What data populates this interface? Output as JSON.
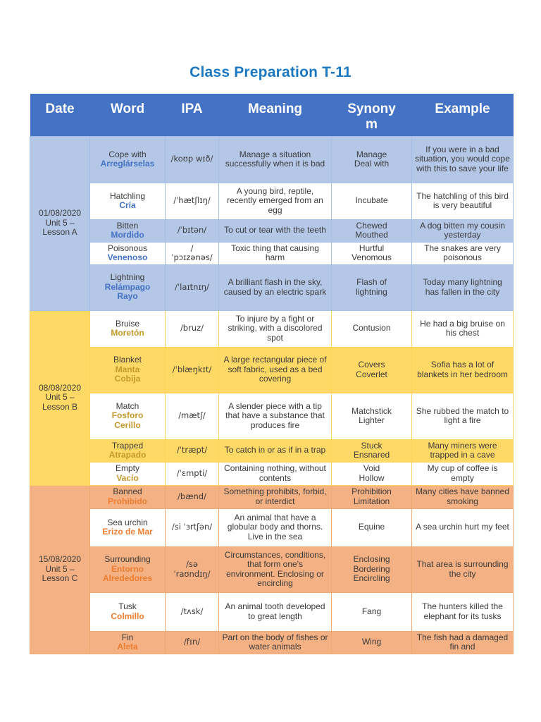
{
  "title": "Class Preparation T-11",
  "theme": {
    "title_color": "#1b78c2",
    "header_bg": "#4472c4",
    "header_text": "#ffffff",
    "body_text": "#3b3b3b",
    "page_bg": "#ffffff"
  },
  "table": {
    "headers": [
      "Date",
      "Word",
      "IPA",
      "Meaning",
      "Synonym",
      "Example"
    ],
    "groups": [
      {
        "date_lines": [
          "01/08/2020",
          "Unit 5 –",
          "Lesson A"
        ],
        "theme": {
          "shade": "#b4c7e7",
          "border": "#a5c0e6",
          "translation_color": "#4472c4"
        },
        "rows": [
          {
            "shaded": true,
            "word": "Cope with",
            "translation": [
              "Arreglárselas"
            ],
            "ipa": [
              "/koʊp wɪð/"
            ],
            "meaning": "Manage a situation successfully when it is bad",
            "synonym": [
              "Manage",
              "Deal with"
            ],
            "example": "If you were in a bad situation, you would cope with this to save your life"
          },
          {
            "shaded": false,
            "word": "Hatchling",
            "translation": [
              "Cría"
            ],
            "ipa": [
              "/ˈhætʃlɪŋ/"
            ],
            "meaning": "A young bird, reptile, recently emerged from an egg",
            "synonym": [
              "Incubate"
            ],
            "example": "The hatchling of this bird is very beautiful"
          },
          {
            "shaded": true,
            "word": "Bitten",
            "translation": [
              "Mordido"
            ],
            "ipa": [
              "/ˈbɪtən/"
            ],
            "meaning": "To cut or tear with the teeth",
            "synonym": [
              "Chewed",
              "Mouthed"
            ],
            "example": "A dog bitten my cousin yesterday"
          },
          {
            "shaded": false,
            "word": "Poisonous",
            "translation": [
              "Venenoso"
            ],
            "ipa": [
              "/",
              "ˈpɔɪzənəs/"
            ],
            "meaning": "Toxic thing that causing harm",
            "synonym": [
              "Hurtful",
              "Venomous"
            ],
            "example": "The snakes are very poisonous"
          },
          {
            "shaded": true,
            "word": "Lightning",
            "translation": [
              "Relámpago",
              "Rayo"
            ],
            "ipa": [
              "/ˈlaɪtnɪŋ/"
            ],
            "meaning": "A brilliant flash in the sky, caused by an electric spark",
            "synonym": [
              "Flash of",
              "lightning"
            ],
            "example": "Today many lightning has fallen in the city"
          }
        ]
      },
      {
        "date_lines": [
          "08/08/2020",
          "Unit 5 –",
          "Lesson B"
        ],
        "theme": {
          "shade": "#ffd966",
          "border": "#fcd45b",
          "translation_color": "#c3992a"
        },
        "rows": [
          {
            "shaded": false,
            "word": "Bruise",
            "translation": [
              "Moretón"
            ],
            "ipa": [
              "/bruz/"
            ],
            "meaning": "To injure by a fight or striking, with a discolored spot",
            "synonym": [
              "Contusion"
            ],
            "example": "He had a big bruise on his chest"
          },
          {
            "shaded": true,
            "word": "Blanket",
            "translation": [
              "Manta",
              "Cobija"
            ],
            "ipa": [
              "/ˈblæŋkɪt/"
            ],
            "meaning": "A large rectangular piece of soft fabric, used as a bed covering",
            "synonym": [
              "Covers",
              "Coverlet"
            ],
            "example": "Sofia has a lot of blankets in her bedroom"
          },
          {
            "shaded": false,
            "word": "Match",
            "translation": [
              "Fosforo",
              "Cerillo"
            ],
            "ipa": [
              "/mætʃ/"
            ],
            "meaning": "A slender piece with a tip that have a substance that produces fire",
            "synonym": [
              "Matchstick",
              "Lighter"
            ],
            "example": "She rubbed the match to light a fire"
          },
          {
            "shaded": true,
            "word": "Trapped",
            "translation": [
              "Atrapado"
            ],
            "ipa": [
              "/ˈtræpt/"
            ],
            "meaning": "To catch in or as if in a trap",
            "synonym": [
              "Stuck",
              "Ensnared"
            ],
            "example": "Many miners were trapped in a cave"
          },
          {
            "shaded": false,
            "word": "Empty",
            "translation": [
              "Vacío"
            ],
            "ipa": [
              "/ˈɛmpti/"
            ],
            "meaning": "Containing nothing, without contents",
            "synonym": [
              "Void",
              "Hollow"
            ],
            "example": "My cup of coffee is empty"
          }
        ]
      },
      {
        "date_lines": [
          "15/08/2020",
          "Unit 5 –",
          "Lesson C"
        ],
        "theme": {
          "shade": "#f4b183",
          "border": "#f0a872",
          "translation_color": "#ed7d31"
        },
        "rows": [
          {
            "shaded": true,
            "word": "Banned",
            "translation": [
              "Prohibido"
            ],
            "ipa": [
              "/bænd/"
            ],
            "meaning": "Something prohibits, forbid, or interdict",
            "synonym": [
              "Prohibition",
              "Limitation"
            ],
            "example": "Many cities have banned smoking"
          },
          {
            "shaded": false,
            "word": "Sea urchin",
            "translation": [
              "Erizo de Mar"
            ],
            "ipa": [
              "/si ˈɜrtʃən/"
            ],
            "meaning": "An animal that have a globular body and thorns. Live in the sea",
            "synonym": [
              "Equine"
            ],
            "example": "A sea urchin hurt my feet"
          },
          {
            "shaded": true,
            "word": "Surrounding",
            "translation": [
              "Entorno",
              "Alrededores"
            ],
            "ipa": [
              "/sə",
              "ˈraʊndɪŋ/"
            ],
            "meaning": "Circumstances, conditions, that form one's environment. Enclosing or encircling",
            "synonym": [
              "Enclosing",
              "Bordering",
              "Encircling"
            ],
            "example": "That area is surrounding the city"
          },
          {
            "shaded": false,
            "word": "Tusk",
            "translation": [
              "Colmillo"
            ],
            "ipa": [
              "/tʌsk/"
            ],
            "meaning": "An animal tooth developed to great length",
            "synonym": [
              "Fang"
            ],
            "example": "The hunters killed the elephant for its tusks"
          },
          {
            "shaded": true,
            "word": "Fin",
            "translation": [
              "Aleta"
            ],
            "ipa": [
              "/fɪn/"
            ],
            "meaning": "Part on the body of fishes or water animals",
            "synonym": [
              "Wing"
            ],
            "example": "The fish had a damaged fin and"
          }
        ]
      }
    ]
  }
}
